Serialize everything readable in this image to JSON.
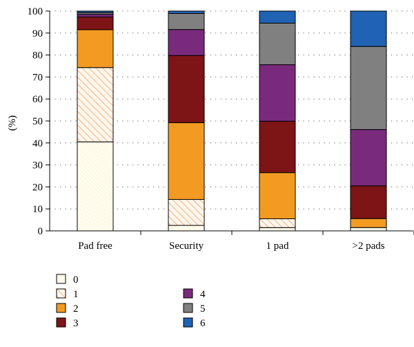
{
  "chart_data": {
    "type": "bar",
    "stacked": true,
    "ylabel": "(%)",
    "ylim": [
      0,
      100
    ],
    "yticks": [
      0,
      10,
      20,
      30,
      40,
      50,
      60,
      70,
      80,
      90,
      100
    ],
    "grid": "dotted horizontal",
    "legend_position": "bottom-left",
    "categories": [
      "Pad free",
      "Security",
      "1 pad",
      ">2 pads"
    ],
    "series": [
      {
        "name": "0",
        "values": [
          40.5,
          2.5,
          1.5,
          1.5
        ],
        "color": "#fffbe6",
        "pattern": "dots"
      },
      {
        "name": "1",
        "values": [
          33.8,
          11.8,
          4.0,
          0.0
        ],
        "color": "#fdebd6",
        "pattern": "hatch"
      },
      {
        "name": "2",
        "values": [
          17.2,
          34.9,
          21.0,
          4.1
        ],
        "color": "#f39a22"
      },
      {
        "name": "3",
        "values": [
          5.8,
          30.6,
          23.4,
          14.9
        ],
        "color": "#7d1416"
      },
      {
        "name": "4",
        "values": [
          1.2,
          11.8,
          25.7,
          25.6
        ],
        "color": "#7a2a7d"
      },
      {
        "name": "5",
        "values": [
          0.8,
          7.3,
          18.9,
          37.8
        ],
        "color": "#808080"
      },
      {
        "name": "6",
        "values": [
          0.7,
          1.1,
          5.5,
          16.1
        ],
        "color": "#2062b3"
      }
    ]
  }
}
